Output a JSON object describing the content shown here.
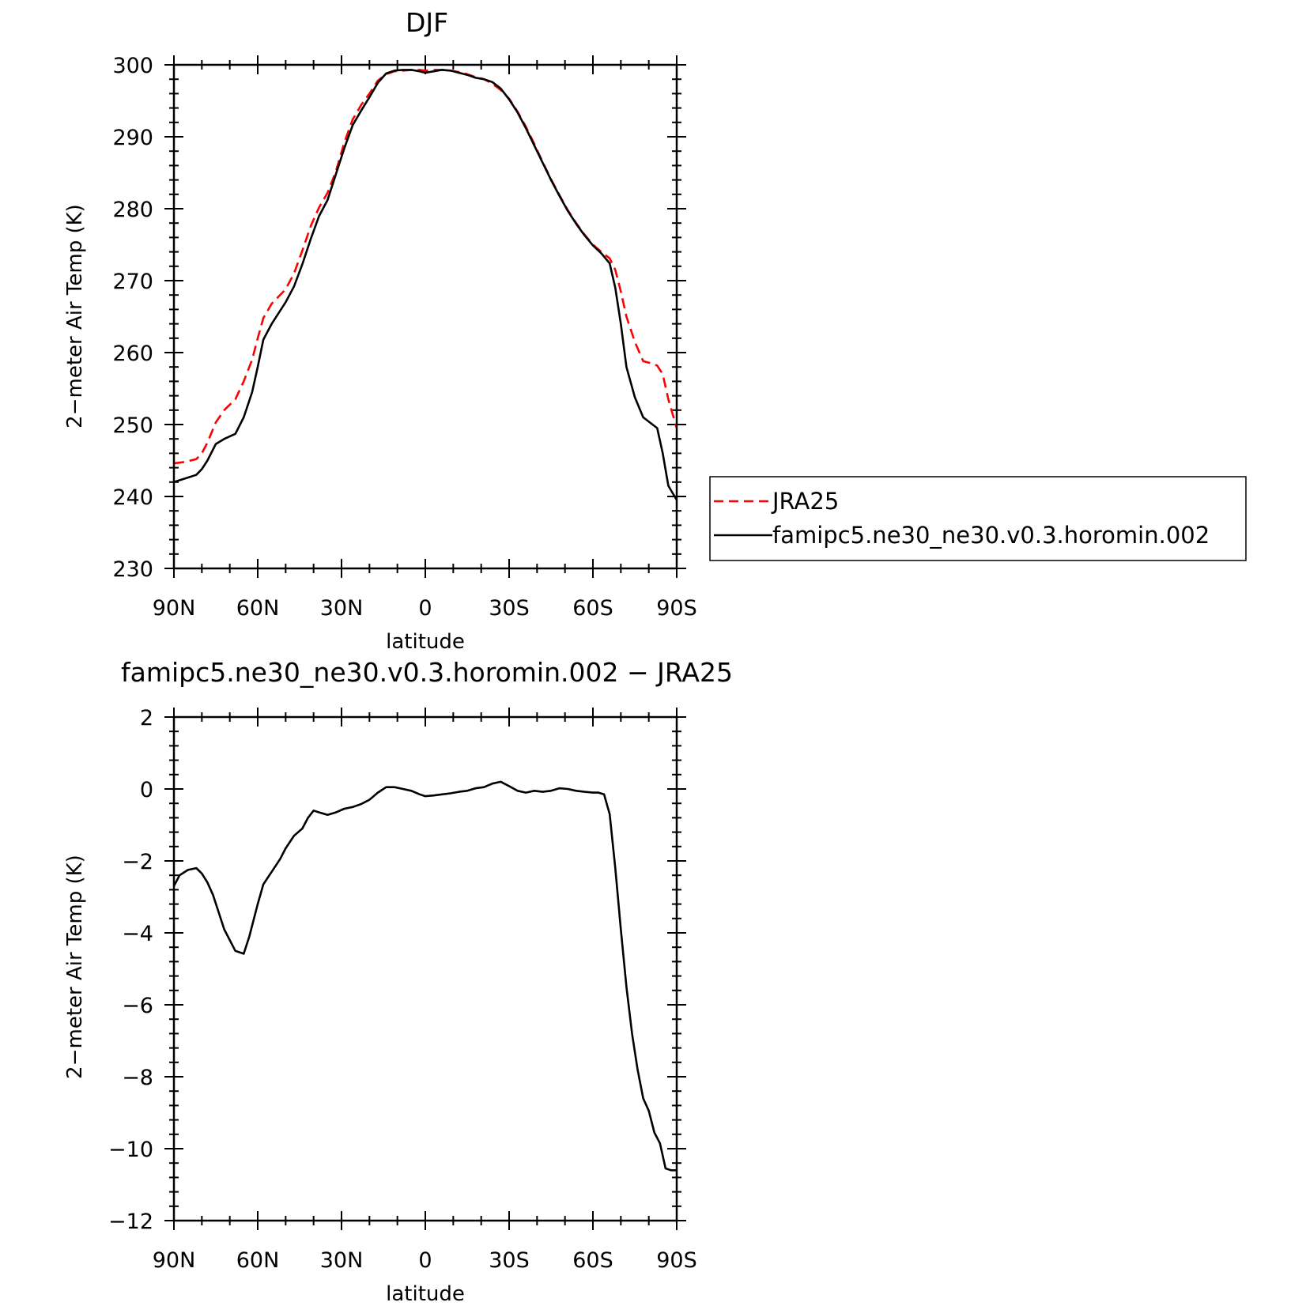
{
  "chart_data": [
    {
      "id": "top",
      "type": "line",
      "title": "DJF",
      "xlabel": "latitude",
      "ylabel": "2−meter Air Temp (K)",
      "xlim": [
        -90,
        90
      ],
      "ylim": [
        230,
        300
      ],
      "xtick_values": [
        -90,
        -60,
        -30,
        0,
        30,
        60,
        90
      ],
      "xtick_labels": [
        "90N",
        "60N",
        "30N",
        "0",
        "30S",
        "60S",
        "90S"
      ],
      "ytick_values": [
        230,
        240,
        250,
        260,
        270,
        280,
        290,
        300
      ],
      "ytick_labels": [
        "230",
        "240",
        "250",
        "260",
        "270",
        "280",
        "290",
        "300"
      ],
      "x_note": "x = latitude in degrees, negative = N, positive = S",
      "legend": {
        "placement": "right",
        "entries": [
          "JRA25",
          "famipc5.ne30_ne30.v0.3.horomin.002"
        ]
      },
      "series": [
        {
          "name": "JRA25",
          "color": "#ff0000",
          "dash": true,
          "x": [
            -90,
            -86,
            -82,
            -80,
            -78,
            -75,
            -72,
            -68,
            -65,
            -62,
            -60,
            -58,
            -55,
            -50,
            -47,
            -44,
            -41,
            -38,
            -35,
            -32,
            -29,
            -26,
            -23,
            -20,
            -17,
            -14,
            -11,
            -8,
            -5,
            -2,
            0,
            3,
            6,
            9,
            12,
            15,
            18,
            21,
            24,
            27,
            30,
            33,
            36,
            39,
            42,
            45,
            48,
            51,
            54,
            57,
            60,
            63,
            66,
            68,
            70,
            72,
            75,
            78,
            80,
            83,
            85,
            87,
            90
          ],
          "values": [
            244.6,
            244.8,
            245.2,
            246.0,
            247.5,
            250.3,
            252.0,
            253.5,
            256.0,
            259.0,
            262.0,
            264.8,
            266.8,
            268.8,
            271.0,
            274.2,
            277.6,
            280.2,
            282.2,
            285.2,
            289.2,
            292.4,
            294.4,
            296.0,
            297.8,
            298.7,
            299.1,
            299.2,
            299.3,
            299.3,
            299.2,
            299.3,
            299.3,
            299.2,
            299.0,
            298.7,
            298.3,
            298.0,
            297.4,
            296.5,
            295.3,
            293.5,
            291.4,
            289.0,
            286.5,
            284.1,
            281.9,
            279.8,
            278.0,
            276.4,
            275.0,
            274.0,
            273.1,
            271.5,
            268.5,
            265.0,
            261.5,
            258.8,
            258.6,
            258.2,
            257.0,
            253.5,
            249.5
          ]
        },
        {
          "name": "famipc5.ne30_ne30.v0.3.horomin.002",
          "color": "#000000",
          "dash": false,
          "x": [
            -90,
            -86,
            -82,
            -80,
            -78,
            -75,
            -72,
            -68,
            -65,
            -62,
            -60,
            -58,
            -55,
            -50,
            -47,
            -44,
            -41,
            -38,
            -35,
            -32,
            -29,
            -26,
            -23,
            -20,
            -17,
            -14,
            -11,
            -8,
            -5,
            -2,
            0,
            3,
            6,
            9,
            12,
            15,
            18,
            21,
            24,
            27,
            30,
            33,
            36,
            39,
            42,
            45,
            48,
            51,
            54,
            57,
            60,
            63,
            66,
            68,
            70,
            72,
            75,
            78,
            80,
            83,
            85,
            87,
            90
          ],
          "values": [
            242.0,
            242.5,
            243.0,
            243.8,
            245.0,
            247.3,
            248.0,
            248.7,
            251.0,
            254.5,
            258.0,
            261.8,
            264.0,
            267.0,
            269.2,
            272.3,
            275.8,
            279.0,
            281.2,
            284.8,
            288.4,
            291.6,
            293.6,
            295.5,
            297.5,
            298.8,
            299.2,
            299.3,
            299.3,
            299.1,
            298.9,
            299.1,
            299.3,
            299.2,
            298.9,
            298.6,
            298.2,
            298.0,
            297.6,
            296.7,
            295.2,
            293.4,
            291.2,
            288.8,
            286.4,
            284.0,
            281.8,
            279.7,
            277.9,
            276.3,
            274.9,
            273.8,
            272.4,
            269.0,
            264.0,
            258.0,
            253.8,
            251.0,
            250.4,
            249.5,
            246.0,
            241.5,
            239.5
          ]
        }
      ]
    },
    {
      "id": "bottom",
      "type": "line",
      "title": "famipc5.ne30_ne30.v0.3.horomin.002 − JRA25",
      "xlabel": "latitude",
      "ylabel": "2−meter Air Temp (K)",
      "xlim": [
        -90,
        90
      ],
      "ylim": [
        -12,
        2
      ],
      "xtick_values": [
        -90,
        -60,
        -30,
        0,
        30,
        60,
        90
      ],
      "xtick_labels": [
        "90N",
        "60N",
        "30N",
        "0",
        "30S",
        "60S",
        "90S"
      ],
      "ytick_values": [
        -12,
        -10,
        -8,
        -6,
        -4,
        -2,
        0,
        2
      ],
      "ytick_labels": [
        "−12",
        "−10",
        "−8",
        "−6",
        "−4",
        "−2",
        "0",
        "2"
      ],
      "x_note": "x = latitude in degrees, negative = N, positive = S",
      "series": [
        {
          "name": "",
          "color": "#000000",
          "dash": false,
          "x": [
            -90,
            -88,
            -85,
            -82,
            -80,
            -78,
            -76,
            -72,
            -68,
            -65,
            -63,
            -60,
            -58,
            -55,
            -52,
            -50,
            -47,
            -44,
            -42,
            -40,
            -38,
            -35,
            -32,
            -29,
            -26,
            -23,
            -20,
            -17,
            -14,
            -11,
            -8,
            -5,
            -2,
            0,
            3,
            6,
            9,
            12,
            15,
            18,
            21,
            24,
            27,
            30,
            33,
            36,
            39,
            42,
            45,
            48,
            51,
            54,
            57,
            60,
            62,
            64,
            66,
            68,
            70,
            72,
            74,
            76,
            78,
            80,
            82,
            84,
            86,
            88,
            90
          ],
          "values": [
            -2.7,
            -2.4,
            -2.25,
            -2.2,
            -2.35,
            -2.6,
            -2.95,
            -3.9,
            -4.5,
            -4.58,
            -4.1,
            -3.2,
            -2.65,
            -2.3,
            -1.95,
            -1.65,
            -1.3,
            -1.1,
            -0.8,
            -0.6,
            -0.65,
            -0.72,
            -0.65,
            -0.55,
            -0.5,
            -0.42,
            -0.3,
            -0.1,
            0.05,
            0.05,
            0.0,
            -0.05,
            -0.15,
            -0.2,
            -0.18,
            -0.15,
            -0.12,
            -0.08,
            -0.05,
            0.02,
            0.05,
            0.15,
            0.2,
            0.08,
            -0.05,
            -0.1,
            -0.05,
            -0.08,
            -0.05,
            0.02,
            0.0,
            -0.05,
            -0.08,
            -0.1,
            -0.1,
            -0.15,
            -0.7,
            -2.2,
            -3.9,
            -5.5,
            -6.8,
            -7.8,
            -8.6,
            -8.95,
            -9.55,
            -9.85,
            -10.55,
            -10.6,
            -10.6
          ]
        }
      ]
    }
  ]
}
